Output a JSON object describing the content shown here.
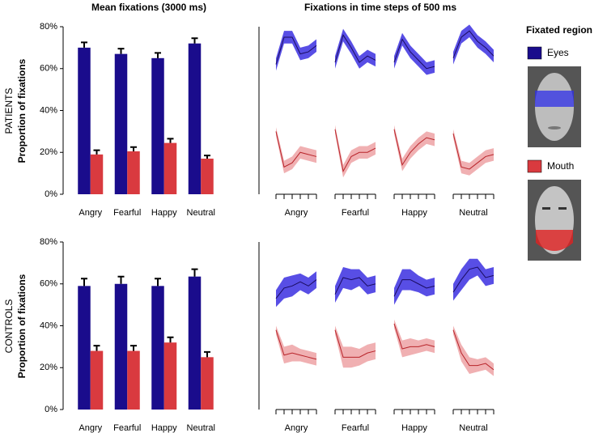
{
  "column_titles": [
    "Mean fixations (3000 ms)",
    "Fixations in time steps of 500 ms"
  ],
  "row_labels": [
    "PATIENTS",
    "CONTROLS"
  ],
  "legend_title": "Fixated region",
  "chart_data": [
    {
      "type": "bar",
      "ylabel": "Proportion of fixations",
      "categories": [
        "Angry",
        "Fearful",
        "Happy",
        "Neutral"
      ],
      "series": [
        {
          "name": "Eyes",
          "color": "#1a0c8c",
          "values": [
            70,
            67,
            65,
            72
          ],
          "errors": [
            2.5,
            2.5,
            2.5,
            2.5
          ]
        },
        {
          "name": "Mouth",
          "color": "#d93a3f",
          "values": [
            19,
            20.5,
            24.5,
            17
          ],
          "errors": [
            2,
            2,
            2,
            1.5
          ]
        }
      ],
      "ylim": [
        0,
        80
      ],
      "yticks": [
        {
          "value": 0,
          "label": "0%"
        },
        {
          "value": 20,
          "label": "20%"
        },
        {
          "value": 40,
          "label": "40%"
        },
        {
          "value": 60,
          "label": "60%"
        },
        {
          "value": 80,
          "label": "80%"
        }
      ]
    },
    {
      "type": "line",
      "categories": [
        "Angry",
        "Fearful",
        "Happy",
        "Neutral"
      ],
      "series": [
        {
          "color": "#3b2fe0",
          "values": [
            [
              62,
              75,
              75,
              67,
              68,
              71
            ],
            [
              63,
              76,
              70,
              63,
              66,
              64
            ],
            [
              63,
              74,
              68,
              64,
              60,
              61
            ],
            [
              65,
              75,
              78,
              73,
              70,
              66
            ]
          ],
          "errors": [
            [
              3,
              3,
              3,
              3,
              3,
              3
            ],
            [
              3,
              3,
              3,
              3,
              3,
              3
            ],
            [
              3,
              3,
              3,
              3,
              3,
              3
            ],
            [
              3,
              3,
              3,
              3,
              3,
              3
            ]
          ]
        },
        {
          "color": "#d93a3f",
          "values": [
            [
              30,
              13,
              15,
              20,
              19,
              18
            ],
            [
              31,
              11,
              18,
              20,
              20,
              22
            ],
            [
              31,
              14,
              20,
              24,
              27,
              26
            ],
            [
              29,
              13,
              12,
              15,
              18,
              19
            ]
          ],
          "errors": [
            [
              2,
              3,
              3,
              3,
              3,
              3
            ],
            [
              2,
              3,
              3,
              3,
              3,
              3
            ],
            [
              2,
              3,
              3,
              3,
              3,
              3
            ],
            [
              2,
              3,
              3,
              3,
              3,
              3
            ]
          ]
        }
      ],
      "ylim": [
        0,
        80
      ]
    },
    {
      "type": "bar",
      "ylabel": "Proportion of fixations",
      "categories": [
        "Angry",
        "Fearful",
        "Happy",
        "Neutral"
      ],
      "series": [
        {
          "color": "#1a0c8c",
          "values": [
            59,
            60,
            59,
            63.5
          ],
          "errors": [
            3.5,
            3.5,
            3.5,
            3.5
          ]
        },
        {
          "color": "#d93a3f",
          "values": [
            28,
            28,
            32,
            25
          ],
          "errors": [
            2.5,
            2.5,
            2.5,
            2.5
          ]
        }
      ],
      "ylim": [
        0,
        80
      ],
      "yticks": [
        {
          "value": 0,
          "label": "0%"
        },
        {
          "value": 20,
          "label": "20%"
        },
        {
          "value": 40,
          "label": "40%"
        },
        {
          "value": 60,
          "label": "60%"
        },
        {
          "value": 80,
          "label": "80%"
        }
      ]
    },
    {
      "type": "line",
      "categories": [
        "Angry",
        "Fearful",
        "Happy",
        "Neutral"
      ],
      "series": [
        {
          "color": "#3b2fe0",
          "values": [
            [
              53,
              58,
              59,
              61,
              59,
              62
            ],
            [
              55,
              63,
              62,
              63,
              59,
              60
            ],
            [
              54,
              62,
              62,
              60,
              58,
              59
            ],
            [
              56,
              62,
              67,
              68,
              63,
              64
            ]
          ],
          "errors": [
            [
              4,
              5,
              5,
              4,
              4,
              4
            ],
            [
              4,
              5,
              5,
              4,
              4,
              4
            ],
            [
              4,
              5,
              5,
              4,
              4,
              4
            ],
            [
              4,
              5,
              5,
              4,
              4,
              4
            ]
          ]
        },
        {
          "color": "#d93a3f",
          "values": [
            [
              38,
              26,
              27,
              26,
              25,
              24
            ],
            [
              38,
              25,
              25,
              25,
              27,
              28
            ],
            [
              41,
              29,
              30,
              30,
              31,
              30
            ],
            [
              38,
              27,
              21,
              21,
              22,
              19
            ]
          ],
          "errors": [
            [
              2,
              4,
              4,
              3,
              3,
              3
            ],
            [
              2,
              5,
              5,
              4,
              4,
              4
            ],
            [
              2,
              4,
              4,
              3,
              3,
              3
            ],
            [
              2,
              4,
              4,
              3,
              3,
              3
            ]
          ]
        }
      ],
      "ylim": [
        0,
        80
      ]
    }
  ]
}
